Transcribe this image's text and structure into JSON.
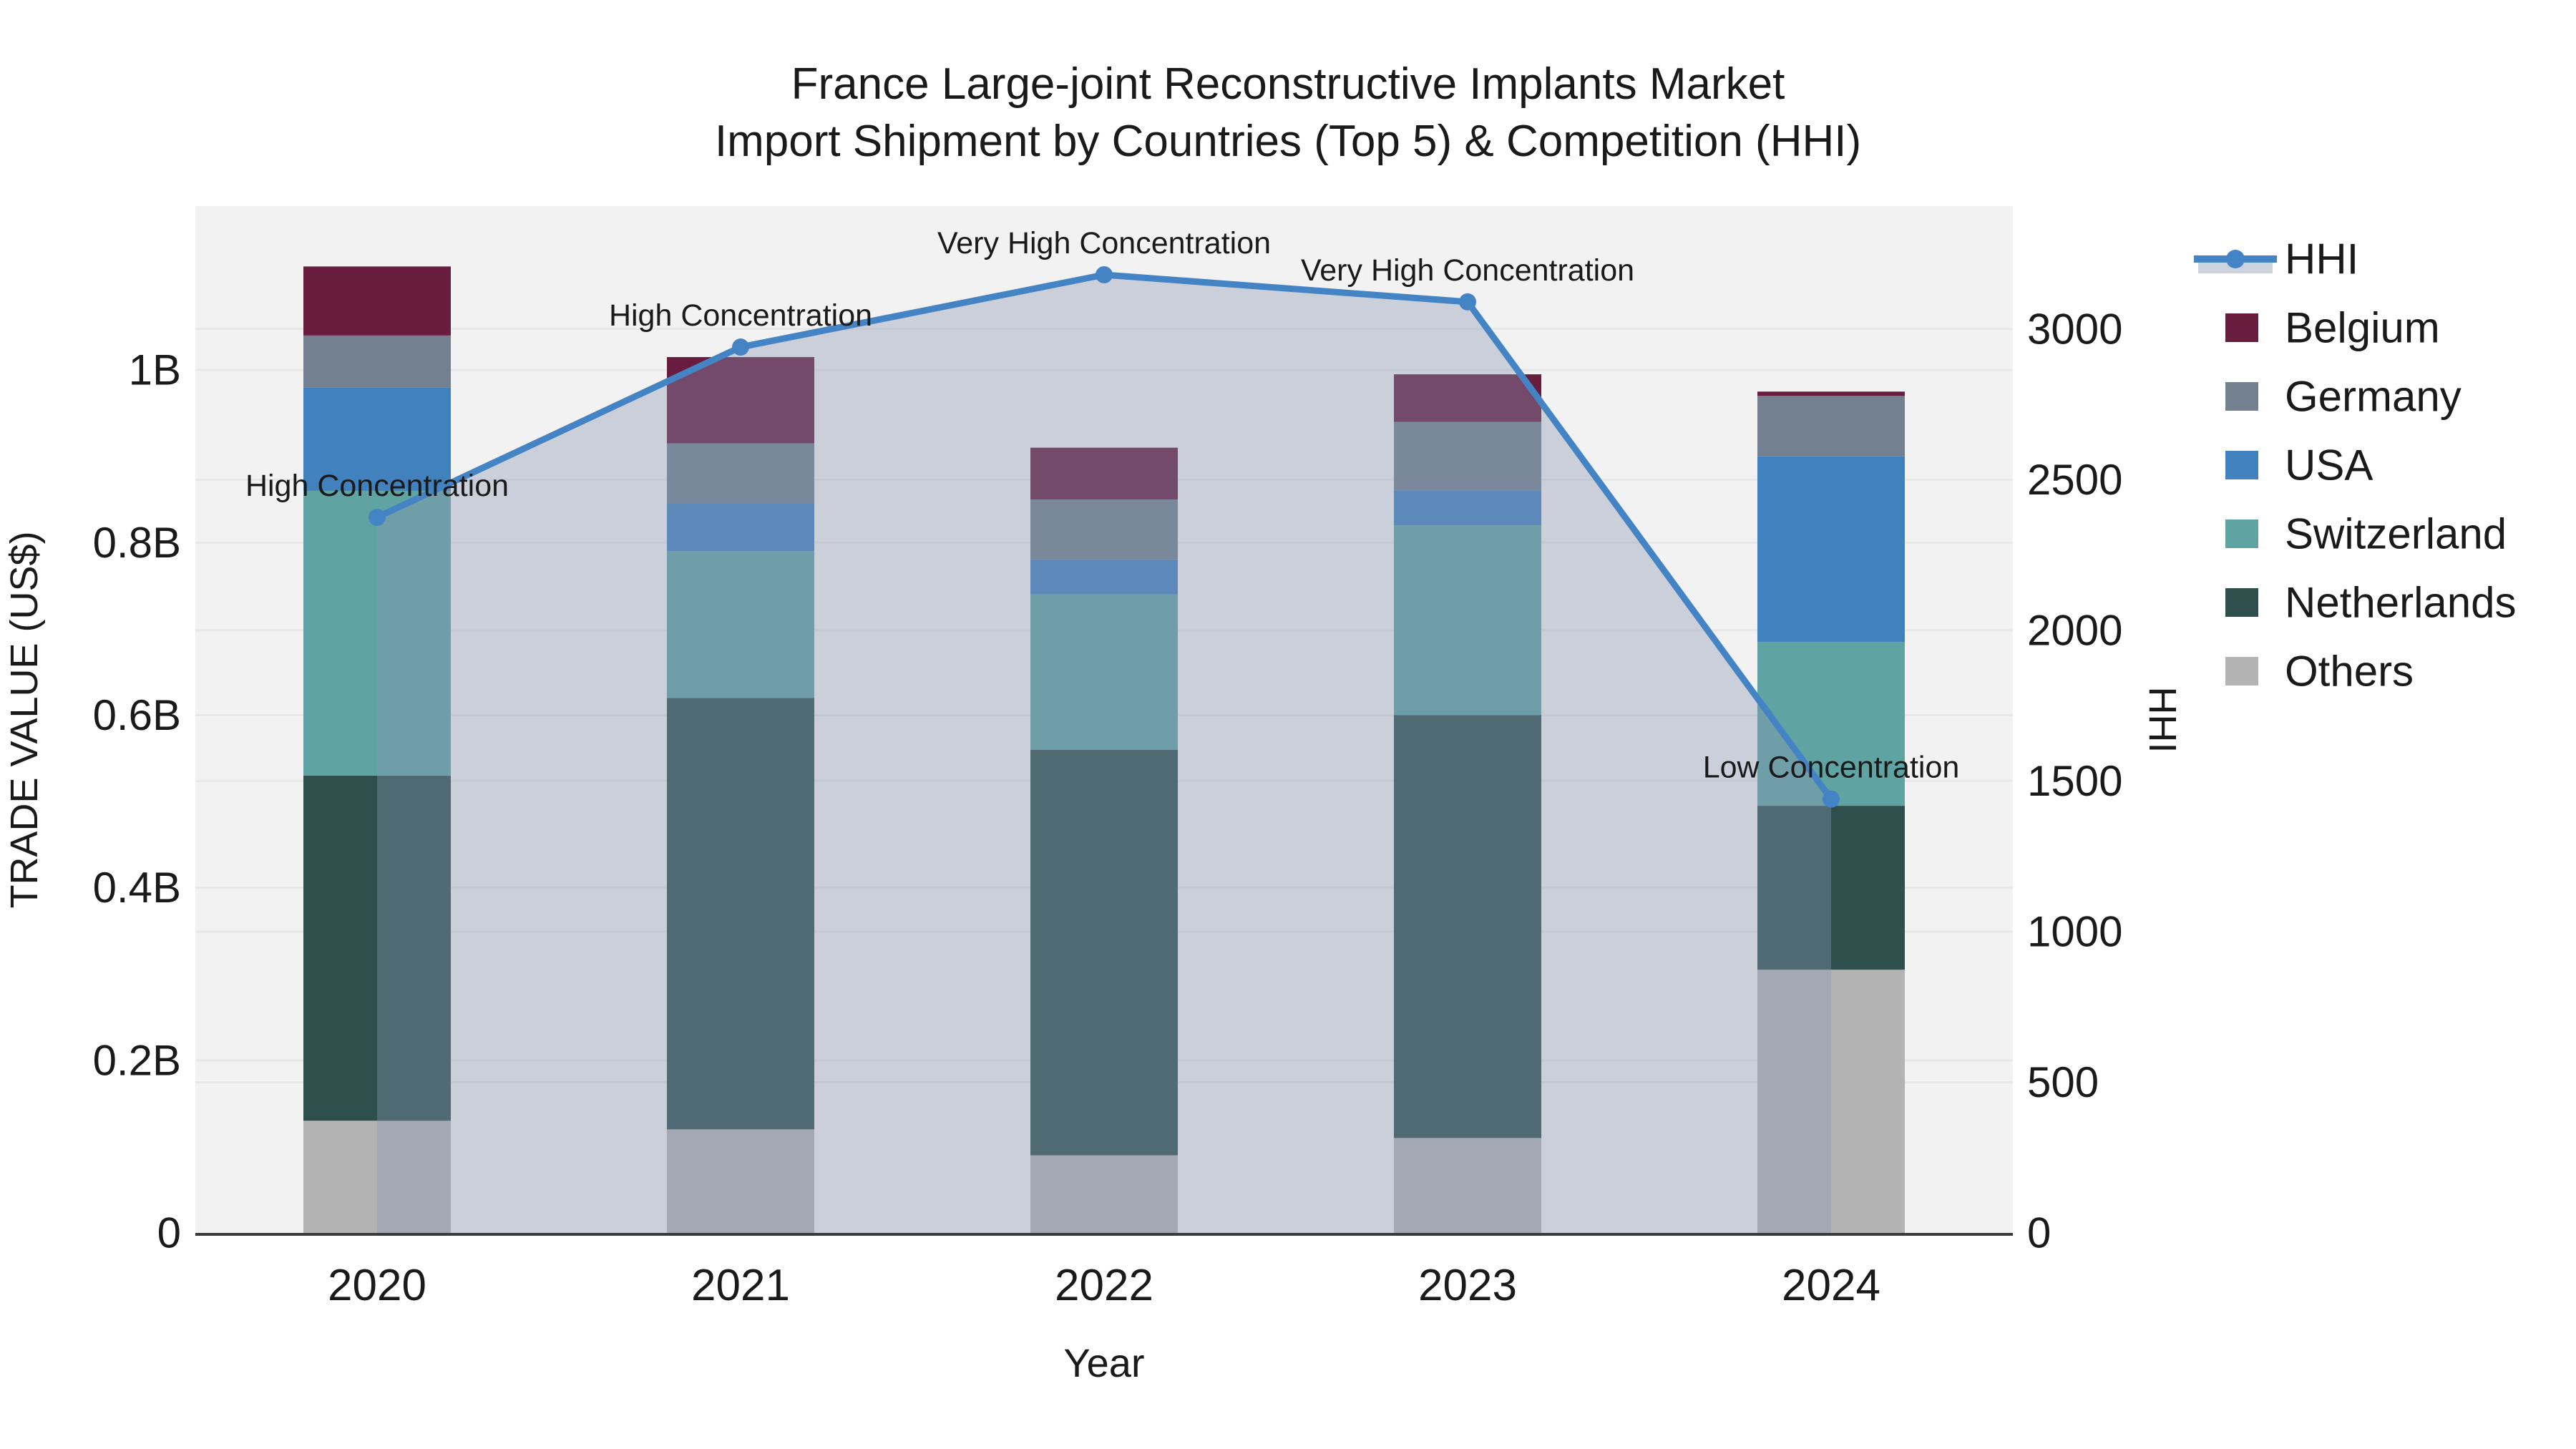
{
  "title": {
    "line1": "France Large-joint Reconstructive Implants Market",
    "line2": "Import Shipment by Countries (Top 5) & Competition (HHI)"
  },
  "axes": {
    "y_left_title": "TRADE VALUE (US$)",
    "y_right_title": "HHI",
    "x_title": "Year"
  },
  "chart_data": {
    "type": "combo_stacked_bar_line",
    "categories": [
      "2020",
      "2021",
      "2022",
      "2023",
      "2024"
    ],
    "bar_value_unit": "billions of US$ (trade value)",
    "stack_order_bottom_to_top": [
      "Others",
      "Netherlands",
      "Switzerland",
      "USA",
      "Germany",
      "Belgium"
    ],
    "series": [
      {
        "name": "Belgium",
        "color": "#681c3e",
        "values": [
          0.08,
          0.1,
          0.06,
          0.055,
          0.005
        ]
      },
      {
        "name": "Germany",
        "color": "#72808f",
        "values": [
          0.06,
          0.07,
          0.07,
          0.08,
          0.07
        ]
      },
      {
        "name": "USA",
        "color": "#4181bd",
        "values": [
          0.12,
          0.055,
          0.04,
          0.04,
          0.215
        ]
      },
      {
        "name": "Switzerland",
        "color": "#5fa3a3",
        "values": [
          0.33,
          0.17,
          0.18,
          0.22,
          0.19
        ]
      },
      {
        "name": "Netherlands",
        "color": "#2e4f4c",
        "values": [
          0.4,
          0.5,
          0.47,
          0.49,
          0.19
        ]
      },
      {
        "name": "Others",
        "color": "#b3b3b3",
        "values": [
          0.13,
          0.12,
          0.09,
          0.11,
          0.305
        ]
      }
    ],
    "line_series": {
      "name": "HHI",
      "axis": "right",
      "color": "#4484c4",
      "area_fill": "rgba(136,150,180,0.38)",
      "values": [
        2375,
        2940,
        3180,
        3090,
        1440
      ]
    },
    "point_annotations": [
      {
        "category": "2020",
        "text": "High Concentration"
      },
      {
        "category": "2021",
        "text": "High Concentration"
      },
      {
        "category": "2022",
        "text": "Very High Concentration"
      },
      {
        "category": "2023",
        "text": "Very High Concentration"
      },
      {
        "category": "2024",
        "text": "Low Concentration"
      }
    ],
    "y_left": {
      "tick_labels": [
        "0",
        "0.2B",
        "0.4B",
        "0.6B",
        "0.8B",
        "1B"
      ],
      "tick_values": [
        0,
        0.2,
        0.4,
        0.6,
        0.8,
        1.0
      ],
      "range": [
        0,
        1.19
      ]
    },
    "y_right": {
      "tick_labels": [
        "0",
        "500",
        "1000",
        "1500",
        "2000",
        "2500",
        "3000"
      ],
      "tick_values": [
        0,
        500,
        1000,
        1500,
        2000,
        2500,
        3000
      ],
      "range": [
        0,
        3408
      ]
    },
    "legend_order": [
      "HHI",
      "Belgium",
      "Germany",
      "USA",
      "Switzerland",
      "Netherlands",
      "Others"
    ],
    "legend_position": "right",
    "grid": true,
    "plot_bg": "#f2f2f2",
    "grid_color": "#e7e8ea",
    "axis_line_color": "#3b3b3b",
    "text_color": "#1a1a1a"
  }
}
